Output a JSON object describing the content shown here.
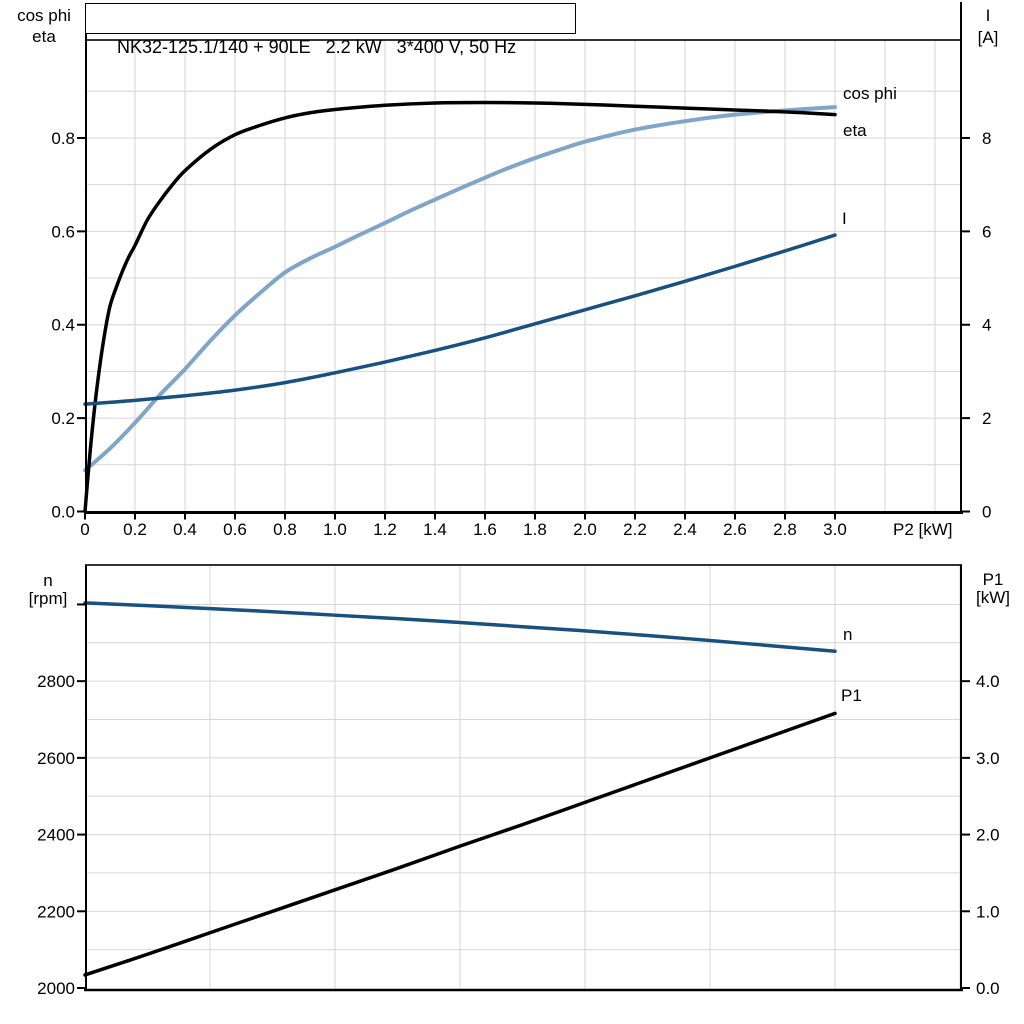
{
  "page": {
    "background": "#ffffff"
  },
  "colors": {
    "black": "#000000",
    "dark_blue": "#18507F",
    "light_blue": "#7FA5C8",
    "grid": "#D6D6D6",
    "frame_dark": "#333333"
  },
  "chart_data": [
    {
      "type": "line",
      "title": "NK32-125.1/140 + 90LE   2.2 kW   3*400 V, 50 Hz",
      "xlabel": "P2 [kW]",
      "ylabel_left": "cos phi / eta",
      "ylabel_left_lines": [
        "cos phi",
        "eta"
      ],
      "ylabel_right": "I [A]",
      "ylabel_right_lines": [
        "I",
        "[A]"
      ],
      "xlim": [
        0,
        3.51
      ],
      "ylim_left": [
        0,
        1.01
      ],
      "ylim_right": [
        0,
        10.1
      ],
      "grid": true,
      "legend_position": "end-of-curve-labels",
      "xticks": [
        0,
        0.2,
        0.4,
        0.6,
        0.8,
        1.0,
        1.2,
        1.4,
        1.6,
        1.8,
        2.0,
        2.2,
        2.4,
        2.6,
        2.8,
        3.0
      ],
      "xtick_labels": [
        "0",
        "0.2",
        "0.4",
        "0.6",
        "0.8",
        "1.0",
        "1.2",
        "1.4",
        "1.6",
        "1.8",
        "2.0",
        "2.2",
        "2.4",
        "2.6",
        "2.8",
        "3.0"
      ],
      "yticks_left": [
        0.0,
        0.2,
        0.4,
        0.6,
        0.8
      ],
      "ytick_left_labels": [
        "0.0",
        "0.2",
        "0.4",
        "0.6",
        "0.8"
      ],
      "yticks_right": [
        0,
        2,
        4,
        6,
        8
      ],
      "ytick_right_labels": [
        "0",
        "2",
        "4",
        "6",
        "8"
      ],
      "x_grid_step": 0.2,
      "y_grid_step_left": 0.1,
      "series": [
        {
          "name": "cos phi",
          "axis": "left",
          "color": "light_blue",
          "x": [
            0,
            0.1,
            0.2,
            0.3,
            0.4,
            0.5,
            0.6,
            0.7,
            0.8,
            0.9,
            1.0,
            1.1,
            1.2,
            1.3,
            1.4,
            1.5,
            1.6,
            1.7,
            1.8,
            1.9,
            2.0,
            2.2,
            2.4,
            2.6,
            2.8,
            3.0
          ],
          "y": [
            0.088,
            0.135,
            0.19,
            0.25,
            0.305,
            0.365,
            0.42,
            0.468,
            0.512,
            0.542,
            0.567,
            0.593,
            0.618,
            0.644,
            0.668,
            0.692,
            0.715,
            0.737,
            0.757,
            0.775,
            0.792,
            0.818,
            0.836,
            0.85,
            0.859,
            0.866
          ]
        },
        {
          "name": "eta",
          "axis": "left",
          "color": "black",
          "x": [
            0,
            0.02,
            0.04,
            0.06,
            0.08,
            0.1,
            0.125,
            0.15,
            0.175,
            0.2,
            0.25,
            0.3,
            0.35,
            0.4,
            0.5,
            0.6,
            0.7,
            0.8,
            0.9,
            1.0,
            1.2,
            1.4,
            1.6,
            1.8,
            2.0,
            2.2,
            2.4,
            2.6,
            2.8,
            3.0
          ],
          "y": [
            0,
            0.125,
            0.23,
            0.315,
            0.385,
            0.44,
            0.48,
            0.515,
            0.545,
            0.57,
            0.625,
            0.665,
            0.7,
            0.73,
            0.775,
            0.807,
            0.827,
            0.843,
            0.854,
            0.861,
            0.87,
            0.875,
            0.876,
            0.875,
            0.872,
            0.868,
            0.864,
            0.86,
            0.856,
            0.85
          ]
        },
        {
          "name": "I",
          "axis": "right",
          "color": "dark_blue",
          "x": [
            0,
            0.2,
            0.4,
            0.6,
            0.8,
            1.0,
            1.2,
            1.4,
            1.6,
            1.8,
            2.0,
            2.2,
            2.4,
            2.6,
            2.8,
            3.0
          ],
          "y": [
            2.3,
            2.38,
            2.48,
            2.6,
            2.76,
            2.97,
            3.2,
            3.45,
            3.72,
            4.02,
            4.32,
            4.62,
            4.93,
            5.25,
            5.58,
            5.92
          ]
        }
      ]
    },
    {
      "type": "line",
      "title": "",
      "xlabel": "",
      "ylabel_left": "n [rpm]",
      "ylabel_left_lines": [
        "n",
        "[rpm]"
      ],
      "ylabel_right": "P1 [kW]",
      "ylabel_right_lines": [
        "P1",
        "[kW]"
      ],
      "xlim": [
        0,
        3.51
      ],
      "ylim_left": [
        2000,
        3103
      ],
      "ylim_right": [
        0,
        5.51
      ],
      "grid": true,
      "xticks": [],
      "xtick_labels": [],
      "yticks_left": [
        2000,
        2200,
        2400,
        2600,
        2800
      ],
      "ytick_left_labels": [
        "2000",
        "2200",
        "2400",
        "2600",
        "2800"
      ],
      "extra_left_tick_values": [
        3000
      ],
      "yticks_right": [
        0,
        1,
        2,
        3,
        4
      ],
      "ytick_right_labels": [
        "0.0",
        "1.0",
        "2.0",
        "3.0",
        "4.0"
      ],
      "x_grid_step": 0.5,
      "y_grid_step_left_rpm": 100,
      "series": [
        {
          "name": "n",
          "axis": "left",
          "color": "dark_blue",
          "x": [
            0,
            0.25,
            0.5,
            0.75,
            1.0,
            1.25,
            1.5,
            1.75,
            2.0,
            2.25,
            2.5,
            2.75,
            3.0
          ],
          "y": [
            3004,
            2997,
            2989,
            2981,
            2972,
            2963,
            2953,
            2942,
            2931,
            2919,
            2906,
            2892,
            2878
          ]
        },
        {
          "name": "P1",
          "axis": "right",
          "color": "black",
          "x": [
            0,
            0.25,
            0.5,
            0.75,
            1.0,
            1.25,
            1.5,
            1.75,
            2.0,
            2.25,
            2.5,
            2.75,
            3.0
          ],
          "y": [
            0.17,
            0.44,
            0.72,
            1.0,
            1.28,
            1.56,
            1.85,
            2.13,
            2.42,
            2.71,
            3.0,
            3.29,
            3.58
          ]
        }
      ]
    }
  ]
}
